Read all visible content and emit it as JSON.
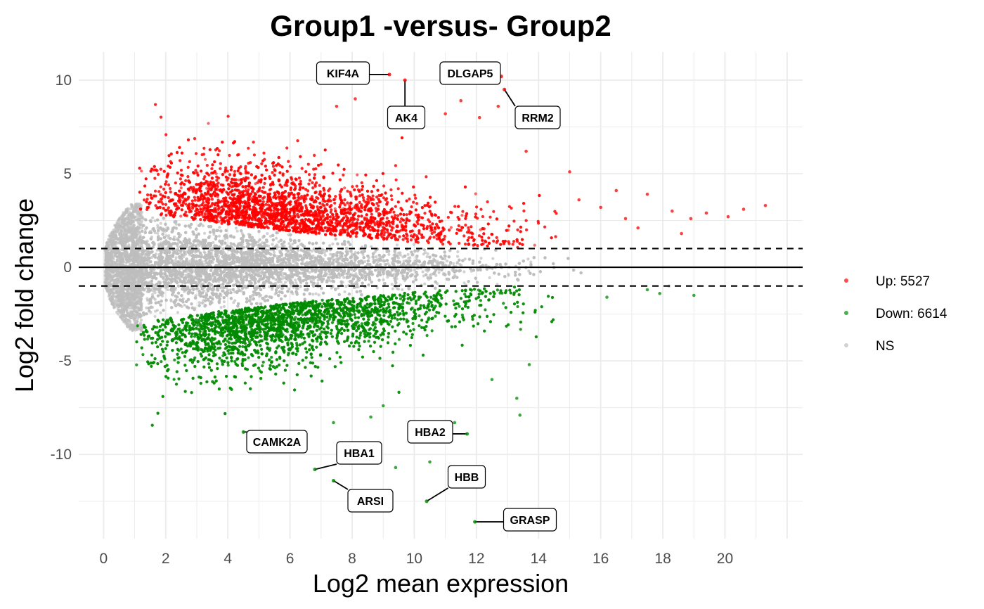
{
  "chart_data": {
    "type": "scatter",
    "title": "Group1 -versus- Group2",
    "xlabel": "Log2 mean expression",
    "ylabel": "Log2 fold change",
    "xlim": [
      -0.8,
      22.5
    ],
    "ylim": [
      -14.5,
      11.5
    ],
    "x_ticks": [
      0,
      2,
      4,
      6,
      8,
      10,
      12,
      14,
      16,
      18,
      20
    ],
    "y_ticks": [
      -10,
      -5,
      0,
      5,
      10
    ],
    "grid": true,
    "reference_lines": [
      {
        "y": 0,
        "style": "solid"
      },
      {
        "y": 1,
        "style": "dashed"
      },
      {
        "y": -1,
        "style": "dashed"
      }
    ],
    "legend_position": "right",
    "series": [
      {
        "name": "Up: 5527",
        "color": "#ff0000",
        "count": 5527
      },
      {
        "name": "Down: 6614",
        "color": "#008b00",
        "count": 6614
      },
      {
        "name": "NS",
        "color": "#bebebe"
      }
    ],
    "labels": [
      {
        "text": "KIF4A",
        "x": 9.2,
        "y": 10.3
      },
      {
        "text": "DLGAP5",
        "x": 12.8,
        "y": 10.2
      },
      {
        "text": "AK4",
        "x": 9.7,
        "y": 10.0
      },
      {
        "text": "RRM2",
        "x": 12.9,
        "y": 9.5
      },
      {
        "text": "CAMK2A",
        "x": 4.5,
        "y": -8.8
      },
      {
        "text": "HBA2",
        "x": 11.7,
        "y": -8.9
      },
      {
        "text": "HBA1",
        "x": 6.8,
        "y": -10.8
      },
      {
        "text": "ARSI",
        "x": 7.4,
        "y": -11.4
      },
      {
        "text": "HBB",
        "x": 10.4,
        "y": -12.5
      },
      {
        "text": "GRASP",
        "x": 11.95,
        "y": -13.6
      }
    ],
    "outlier_points": [
      {
        "x": 15.0,
        "y": 5.1
      },
      {
        "x": 16.5,
        "y": 4.1
      },
      {
        "x": 17.5,
        "y": 3.9
      },
      {
        "x": 18.3,
        "y": 3.0
      },
      {
        "x": 18.9,
        "y": 2.6
      },
      {
        "x": 19.4,
        "y": 2.9
      },
      {
        "x": 20.1,
        "y": 2.7
      },
      {
        "x": 20.6,
        "y": 3.1
      },
      {
        "x": 21.3,
        "y": 3.3
      },
      {
        "x": 17.2,
        "y": 2.1
      },
      {
        "x": 18.6,
        "y": 1.8
      },
      {
        "x": 16.8,
        "y": 2.6
      },
      {
        "x": 17.9,
        "y": -1.4
      },
      {
        "x": 19.0,
        "y": -1.5
      },
      {
        "x": 18.2,
        "y": -1.0
      },
      {
        "x": 16.2,
        "y": -1.6
      },
      {
        "x": 17.5,
        "y": -1.2
      },
      {
        "x": 13.3,
        "y": -7.0
      },
      {
        "x": 13.4,
        "y": -7.9
      },
      {
        "x": 13.7,
        "y": -5.2
      },
      {
        "x": 12.5,
        "y": -6.0
      },
      {
        "x": 11.3,
        "y": -8.3
      },
      {
        "x": 9.4,
        "y": -10.7
      },
      {
        "x": 10.5,
        "y": -10.4
      },
      {
        "x": 8.6,
        "y": -8.0
      },
      {
        "x": 15.3,
        "y": 3.6
      },
      {
        "x": 16.0,
        "y": 3.2
      },
      {
        "x": 11.0,
        "y": 8.2
      },
      {
        "x": 11.5,
        "y": 8.9
      },
      {
        "x": 12.1,
        "y": 8.0
      },
      {
        "x": 13.6,
        "y": 6.2
      },
      {
        "x": 12.7,
        "y": 8.6
      },
      {
        "x": 8.1,
        "y": 9.0
      },
      {
        "x": 7.5,
        "y": 8.6
      },
      {
        "x": 9.0,
        "y": -7.4
      },
      {
        "x": 7.4,
        "y": -8.3
      }
    ]
  }
}
